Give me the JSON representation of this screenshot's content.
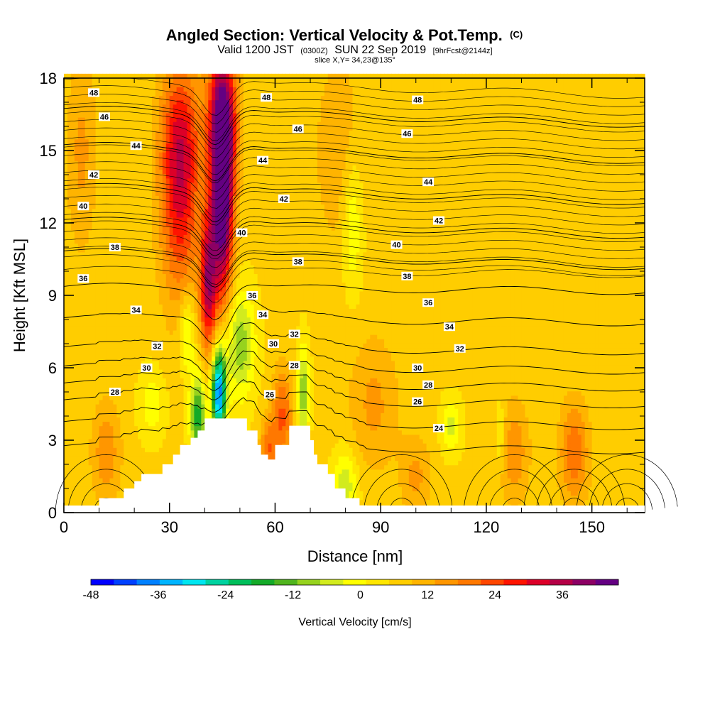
{
  "chart_data": {
    "type": "heatmap",
    "title": "Angled Section: Vertical Velocity & Pot.Temp.",
    "title_mark": "(C)",
    "subtitle_parts": [
      "Valid 1200 JST",
      "(0300Z)",
      "SUN 22 Sep 2019",
      "[9hrFcst@2144z]"
    ],
    "subtitle2": "slice X,Y= 34,23@135°",
    "xlabel": "Distance [nm]",
    "ylabel": "Height [Kft MSL]",
    "xlim": [
      0,
      165
    ],
    "ylim": [
      0,
      18
    ],
    "x_ticks": [
      0,
      30,
      60,
      90,
      120,
      150
    ],
    "y_ticks": [
      0,
      3,
      6,
      9,
      12,
      15,
      18
    ],
    "colorbar": {
      "label": "Vertical Velocity [cm/s]",
      "ticks": [
        -48,
        -36,
        -24,
        -12,
        0,
        12,
        24,
        36
      ],
      "min": -48,
      "max": 42,
      "step": 4,
      "colors": [
        "#0000ff",
        "#0040ff",
        "#0080ff",
        "#00b4ff",
        "#00e6f0",
        "#00d2a0",
        "#00be5a",
        "#14aa28",
        "#50b41e",
        "#96d21e",
        "#d2eb1e",
        "#ffff00",
        "#ffe600",
        "#ffcd00",
        "#ffb400",
        "#ff9600",
        "#ff7800",
        "#ff4600",
        "#ff1400",
        "#dc0028",
        "#b40046",
        "#8c0064",
        "#640082"
      ]
    },
    "terrain_profile": [
      [
        0,
        0
      ],
      [
        10,
        0
      ],
      [
        10,
        0.6
      ],
      [
        15,
        0.6
      ],
      [
        15,
        0.6
      ],
      [
        17,
        0.6
      ],
      [
        17,
        1.0
      ],
      [
        20,
        1.0
      ],
      [
        20,
        1.3
      ],
      [
        22,
        1.3
      ],
      [
        22,
        1.6
      ],
      [
        28,
        1.6
      ],
      [
        28,
        2.0
      ],
      [
        31,
        2.0
      ],
      [
        31,
        2.4
      ],
      [
        33,
        2.4
      ],
      [
        33,
        2.8
      ],
      [
        36,
        2.8
      ],
      [
        36,
        3.1
      ],
      [
        38,
        3.1
      ],
      [
        38,
        3.4
      ],
      [
        40,
        3.4
      ],
      [
        40,
        3.9
      ],
      [
        52,
        3.9
      ],
      [
        52,
        3.4
      ],
      [
        55,
        3.4
      ],
      [
        55,
        2.8
      ],
      [
        56,
        2.8
      ],
      [
        56,
        2.4
      ],
      [
        58,
        2.4
      ],
      [
        58,
        2.2
      ],
      [
        60,
        2.2
      ],
      [
        60,
        2.8
      ],
      [
        64,
        2.8
      ],
      [
        64,
        3.6
      ],
      [
        70,
        3.6
      ],
      [
        70,
        3.0
      ],
      [
        71,
        3.0
      ],
      [
        71,
        2.4
      ],
      [
        72,
        2.4
      ],
      [
        72,
        2.0
      ],
      [
        75,
        2.0
      ],
      [
        75,
        1.6
      ],
      [
        77,
        1.6
      ],
      [
        77,
        1.0
      ],
      [
        80,
        1.0
      ],
      [
        80,
        0.6
      ],
      [
        84,
        0.6
      ],
      [
        84,
        0.3
      ],
      [
        86,
        0.3
      ],
      [
        86,
        0
      ],
      [
        165,
        0
      ]
    ],
    "velocity_features": [
      {
        "x": 45,
        "y": 13,
        "amp": 42,
        "sx": 2.2,
        "sy": 3.0
      },
      {
        "x": 45,
        "y": 16.5,
        "amp": 26,
        "sx": 3.0,
        "sy": 2.0
      },
      {
        "x": 41,
        "y": 9.5,
        "amp": 28,
        "sx": 1.6,
        "sy": 2.0
      },
      {
        "x": 33,
        "y": 13,
        "amp": 22,
        "sx": 4.0,
        "sy": 3.0
      },
      {
        "x": 33,
        "y": 16,
        "amp": 12,
        "sx": 4.0,
        "sy": 2.0
      },
      {
        "x": 44,
        "y": 5,
        "amp": -44,
        "sx": 1.4,
        "sy": 1.3
      },
      {
        "x": 38,
        "y": 4,
        "amp": -24,
        "sx": 1.5,
        "sy": 1.2
      },
      {
        "x": 50,
        "y": 7,
        "amp": -16,
        "sx": 3.0,
        "sy": 1.6
      },
      {
        "x": 35,
        "y": 7.5,
        "amp": -12,
        "sx": 1.5,
        "sy": 1.2
      },
      {
        "x": 25,
        "y": 4.5,
        "amp": -8,
        "sx": 2.5,
        "sy": 1.0
      },
      {
        "x": 68,
        "y": 5,
        "amp": -16,
        "sx": 1.2,
        "sy": 1.4
      },
      {
        "x": 80,
        "y": 1.2,
        "amp": -12,
        "sx": 2.5,
        "sy": 1.0
      },
      {
        "x": 82,
        "y": 12,
        "amp": -10,
        "sx": 2.0,
        "sy": 2.0
      },
      {
        "x": 110,
        "y": 3.6,
        "amp": -10,
        "sx": 2.0,
        "sy": 0.8
      },
      {
        "x": 124,
        "y": 3.3,
        "amp": -8,
        "sx": 0.9,
        "sy": 0.9
      },
      {
        "x": 62,
        "y": 4,
        "amp": 16,
        "sx": 2.0,
        "sy": 1.4
      },
      {
        "x": 58,
        "y": 2.6,
        "amp": 14,
        "sx": 1.5,
        "sy": 0.9
      },
      {
        "x": 88,
        "y": 4.5,
        "amp": 8,
        "sx": 5.0,
        "sy": 2.0
      },
      {
        "x": 12,
        "y": 2.5,
        "amp": 10,
        "sx": 3.0,
        "sy": 1.5
      },
      {
        "x": 145,
        "y": 2.5,
        "amp": 14,
        "sx": 3.0,
        "sy": 1.5
      },
      {
        "x": 128,
        "y": 2.5,
        "amp": 10,
        "sx": 3.0,
        "sy": 1.5
      },
      {
        "x": 100,
        "y": 1.5,
        "amp": 8,
        "sx": 3.0,
        "sy": 1.2
      },
      {
        "x": 5,
        "y": 15,
        "amp": 8,
        "sx": 3.0,
        "sy": 3.0
      },
      {
        "x": 78,
        "y": 15,
        "amp": 6,
        "sx": 5.0,
        "sy": 3.0
      }
    ],
    "theta_isentropes": [
      {
        "value": 24,
        "base": 2.7
      },
      {
        "value": 26,
        "base": 3.7
      },
      {
        "value": 28,
        "base": 4.6
      },
      {
        "value": 30,
        "base": 5.3
      },
      {
        "value": 32,
        "base": 6.0
      },
      {
        "value": 34,
        "base": 6.8
      },
      {
        "value": 36,
        "base": 8.0
      },
      {
        "value": 38,
        "base": 9.3
      },
      {
        "value": 40,
        "base": 10.6
      },
      {
        "value": 42,
        "base": 11.9
      },
      {
        "value": 44,
        "base": 13.3
      },
      {
        "value": 46,
        "base": 15.0
      },
      {
        "value": 48,
        "base": 16.5
      }
    ],
    "contour_labels": [
      {
        "text": "48",
        "x": 8.5,
        "y": 17.4
      },
      {
        "text": "46",
        "x": 11.5,
        "y": 16.4
      },
      {
        "text": "44",
        "x": 20.5,
        "y": 15.2
      },
      {
        "text": "42",
        "x": 8.5,
        "y": 14.0
      },
      {
        "text": "40",
        "x": 5.5,
        "y": 12.7
      },
      {
        "text": "38",
        "x": 14.5,
        "y": 11.0
      },
      {
        "text": "36",
        "x": 5.5,
        "y": 9.7
      },
      {
        "text": "34",
        "x": 20.5,
        "y": 8.4
      },
      {
        "text": "32",
        "x": 26.5,
        "y": 6.9
      },
      {
        "text": "30",
        "x": 23.5,
        "y": 6.0
      },
      {
        "text": "28",
        "x": 14.5,
        "y": 5.0
      },
      {
        "text": "48",
        "x": 57.5,
        "y": 17.2
      },
      {
        "text": "46",
        "x": 66.5,
        "y": 15.9
      },
      {
        "text": "44",
        "x": 56.5,
        "y": 14.6
      },
      {
        "text": "42",
        "x": 62.5,
        "y": 13.0
      },
      {
        "text": "40",
        "x": 50.5,
        "y": 11.6
      },
      {
        "text": "38",
        "x": 66.5,
        "y": 10.4
      },
      {
        "text": "36",
        "x": 53.5,
        "y": 9.0
      },
      {
        "text": "34",
        "x": 56.5,
        "y": 8.2
      },
      {
        "text": "32",
        "x": 65.5,
        "y": 7.4
      },
      {
        "text": "30",
        "x": 59.5,
        "y": 7.0
      },
      {
        "text": "28",
        "x": 65.5,
        "y": 6.1
      },
      {
        "text": "26",
        "x": 58.5,
        "y": 4.9
      },
      {
        "text": "48",
        "x": 100.5,
        "y": 17.1
      },
      {
        "text": "46",
        "x": 97.5,
        "y": 15.7
      },
      {
        "text": "44",
        "x": 103.5,
        "y": 13.7
      },
      {
        "text": "42",
        "x": 106.5,
        "y": 12.1
      },
      {
        "text": "40",
        "x": 94.5,
        "y": 11.1
      },
      {
        "text": "38",
        "x": 97.5,
        "y": 9.8
      },
      {
        "text": "36",
        "x": 103.5,
        "y": 8.7
      },
      {
        "text": "34",
        "x": 109.5,
        "y": 7.7
      },
      {
        "text": "32",
        "x": 112.5,
        "y": 6.8
      },
      {
        "text": "30",
        "x": 100.5,
        "y": 6.0
      },
      {
        "text": "28",
        "x": 103.5,
        "y": 5.3
      },
      {
        "text": "26",
        "x": 100.5,
        "y": 4.6
      },
      {
        "text": "24",
        "x": 106.5,
        "y": 3.5
      }
    ]
  }
}
